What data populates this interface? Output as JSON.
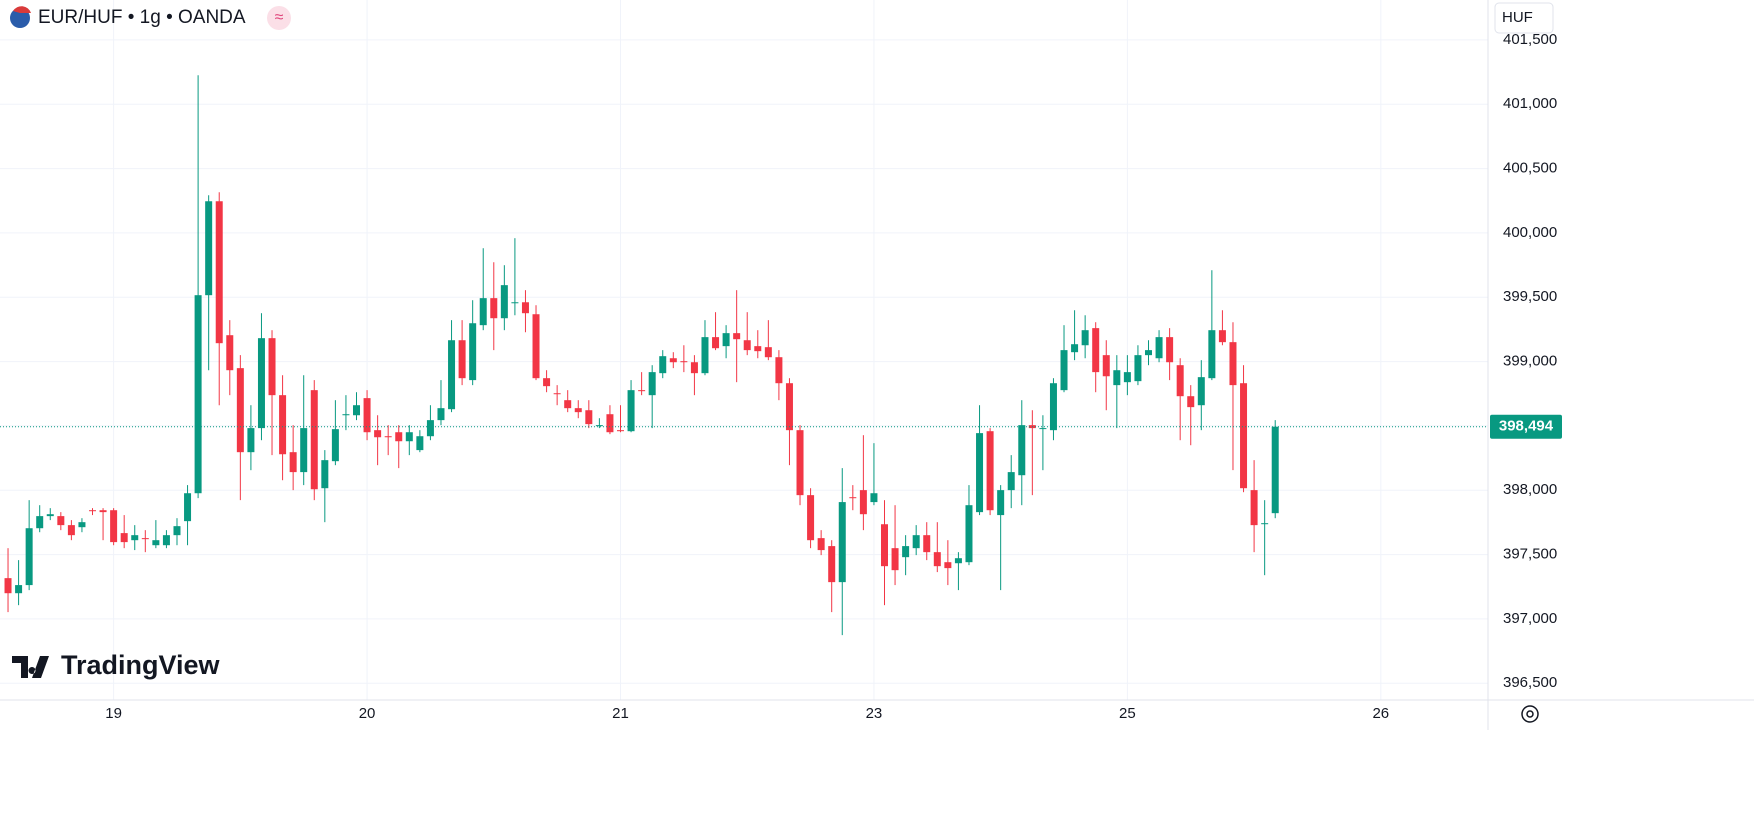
{
  "header": {
    "title": "EUR/HUF • 1g • OANDA",
    "badge": "≈",
    "currency_button": "HUF"
  },
  "logo": "TradingView",
  "chart_data": {
    "type": "candlestick",
    "up_color": "#089981",
    "down_color": "#f23645",
    "ylim": [
      396370,
      401810
    ],
    "yticks": [
      {
        "value": 396500,
        "label": "396,500"
      },
      {
        "value": 397000,
        "label": "397,000"
      },
      {
        "value": 397500,
        "label": "397,500"
      },
      {
        "value": 398000,
        "label": "398,000"
      },
      {
        "value": 398500,
        "label": "398,500"
      },
      {
        "value": 399000,
        "label": "399,000"
      },
      {
        "value": 399500,
        "label": "399,500"
      },
      {
        "value": 400000,
        "label": "400,000"
      },
      {
        "value": 400500,
        "label": "400,500"
      },
      {
        "value": 401000,
        "label": "401,000"
      },
      {
        "value": 401500,
        "label": "401,500"
      }
    ],
    "xlim": [
      -0.76,
      140.15
    ],
    "xticks": [
      {
        "value": 10,
        "label": "19"
      },
      {
        "value": 34,
        "label": "20"
      },
      {
        "value": 58,
        "label": "21"
      },
      {
        "value": 82,
        "label": "23"
      },
      {
        "value": 106,
        "label": "25"
      },
      {
        "value": 130,
        "label": "26"
      }
    ],
    "grid": true,
    "last_price": {
      "value": 398494,
      "label": "398,494"
    },
    "candles": [
      [
        397317,
        397550,
        397053,
        397200
      ],
      [
        397200,
        397457,
        397107,
        397263
      ],
      [
        397263,
        397923,
        397224,
        397705
      ],
      [
        397705,
        397884,
        397674,
        397799
      ],
      [
        397799,
        397861,
        397768,
        397814
      ],
      [
        397799,
        397830,
        397690,
        397729
      ],
      [
        397729,
        397768,
        397612,
        397651
      ],
      [
        397713,
        397783,
        397674,
        397752
      ],
      [
        397845,
        397861,
        397807,
        397838
      ],
      [
        397845,
        397861,
        397612,
        397830
      ],
      [
        397845,
        397861,
        397573,
        397597
      ],
      [
        397667,
        397807,
        397550,
        397597
      ],
      [
        397612,
        397729,
        397535,
        397651
      ],
      [
        397628,
        397690,
        397519,
        397620
      ],
      [
        397573,
        397768,
        397550,
        397612
      ],
      [
        397573,
        397690,
        397550,
        397651
      ],
      [
        397651,
        397783,
        397573,
        397721
      ],
      [
        397760,
        398040,
        397573,
        397977
      ],
      [
        397977,
        401225,
        397939,
        399516
      ],
      [
        399516,
        400293,
        398933,
        400246
      ],
      [
        400246,
        400316,
        398661,
        399143
      ],
      [
        399205,
        399322,
        398739,
        398933
      ],
      [
        398949,
        399050,
        397923,
        398296
      ],
      [
        398296,
        398661,
        398156,
        398483
      ],
      [
        398483,
        399376,
        398389,
        399182
      ],
      [
        399182,
        399244,
        398273,
        398739
      ],
      [
        398739,
        398894,
        398078,
        398280
      ],
      [
        398296,
        398506,
        398001,
        398141
      ],
      [
        398141,
        398894,
        398040,
        398483
      ],
      [
        398778,
        398856,
        397923,
        398008
      ],
      [
        398016,
        398312,
        397752,
        398234
      ],
      [
        398226,
        398700,
        398195,
        398475
      ],
      [
        398583,
        398739,
        398467,
        398591
      ],
      [
        398583,
        398762,
        398545,
        398661
      ],
      [
        398716,
        398778,
        398389,
        398451
      ],
      [
        398467,
        398583,
        398195,
        398412
      ],
      [
        398420,
        398506,
        398273,
        398412
      ],
      [
        398451,
        398506,
        398172,
        398381
      ],
      [
        398381,
        398506,
        398273,
        398451
      ],
      [
        398312,
        398467,
        398296,
        398420
      ],
      [
        398420,
        398661,
        398389,
        398545
      ],
      [
        398545,
        398856,
        398506,
        398638
      ],
      [
        398630,
        399322,
        398607,
        399166
      ],
      [
        399166,
        399322,
        398817,
        398871
      ],
      [
        398856,
        399477,
        398817,
        399298
      ],
      [
        399283,
        399881,
        399244,
        399493
      ],
      [
        399493,
        399772,
        399089,
        399337
      ],
      [
        399337,
        399749,
        399244,
        399594
      ],
      [
        399461,
        399959,
        399360,
        399461
      ],
      [
        399461,
        399555,
        399228,
        399376
      ],
      [
        399368,
        399438,
        398856,
        398871
      ],
      [
        398871,
        398933,
        398762,
        398809
      ],
      [
        398754,
        398817,
        398661,
        398747
      ],
      [
        398700,
        398778,
        398607,
        398638
      ],
      [
        398638,
        398700,
        398560,
        398607
      ],
      [
        398622,
        398700,
        398483,
        398514
      ],
      [
        398506,
        398560,
        398483,
        398506
      ],
      [
        398591,
        398661,
        398436,
        398451
      ],
      [
        398467,
        398661,
        398451,
        398459
      ],
      [
        398459,
        398856,
        398451,
        398778
      ],
      [
        398778,
        398918,
        398739,
        398770
      ],
      [
        398739,
        398972,
        398483,
        398918
      ],
      [
        398910,
        399089,
        398871,
        399042
      ],
      [
        399026,
        399073,
        398949,
        398995
      ],
      [
        399003,
        399127,
        398918,
        398995
      ],
      [
        398995,
        399050,
        398739,
        398910
      ],
      [
        398910,
        399322,
        398894,
        399190
      ],
      [
        399190,
        399384,
        399089,
        399104
      ],
      [
        399120,
        399283,
        399026,
        399221
      ],
      [
        399221,
        399555,
        398840,
        399174
      ],
      [
        399166,
        399384,
        399050,
        399089
      ],
      [
        399120,
        399244,
        399026,
        399081
      ],
      [
        399112,
        399322,
        399011,
        399034
      ],
      [
        399034,
        399089,
        398700,
        398832
      ],
      [
        398832,
        398871,
        398195,
        398467
      ],
      [
        398467,
        398506,
        397884,
        397962
      ],
      [
        397962,
        398016,
        397550,
        397612
      ],
      [
        397628,
        397690,
        397496,
        397535
      ],
      [
        397566,
        397612,
        397053,
        397286
      ],
      [
        397286,
        398172,
        396874,
        397908
      ],
      [
        397946,
        398040,
        397845,
        397939
      ],
      [
        398001,
        398428,
        397690,
        397814
      ],
      [
        397908,
        398366,
        397884,
        397977
      ],
      [
        397736,
        397923,
        397107,
        397410
      ],
      [
        397550,
        397884,
        397263,
        397379
      ],
      [
        397480,
        397651,
        397340,
        397566
      ],
      [
        397550,
        397729,
        397496,
        397651
      ],
      [
        397651,
        397752,
        397457,
        397519
      ],
      [
        397519,
        397752,
        397364,
        397410
      ],
      [
        397441,
        397612,
        397263,
        397395
      ],
      [
        397433,
        397519,
        397224,
        397472
      ],
      [
        397441,
        398040,
        397418,
        397884
      ],
      [
        397830,
        398661,
        397807,
        398444
      ],
      [
        398459,
        398483,
        397807,
        397845
      ],
      [
        397807,
        398040,
        397224,
        398001
      ],
      [
        398001,
        398273,
        397861,
        398141
      ],
      [
        398117,
        398700,
        397884,
        398506
      ],
      [
        398506,
        398622,
        397962,
        398483
      ],
      [
        398483,
        398583,
        398156,
        398483
      ],
      [
        398467,
        398871,
        398389,
        398832
      ],
      [
        398778,
        399283,
        398762,
        399089
      ],
      [
        399073,
        399399,
        399011,
        399135
      ],
      [
        399127,
        399360,
        399026,
        399244
      ],
      [
        399260,
        399306,
        398762,
        398918
      ],
      [
        399050,
        399166,
        398622,
        398886
      ],
      [
        398817,
        399050,
        398483,
        398933
      ],
      [
        398840,
        399050,
        398739,
        398918
      ],
      [
        398848,
        399127,
        398817,
        399050
      ],
      [
        399050,
        399166,
        398972,
        399089
      ],
      [
        399026,
        399244,
        398995,
        399190
      ],
      [
        399190,
        399260,
        398856,
        398995
      ],
      [
        398972,
        399026,
        398389,
        398731
      ],
      [
        398731,
        398817,
        398350,
        398646
      ],
      [
        398661,
        399011,
        398467,
        398879
      ],
      [
        398871,
        399710,
        398856,
        399244
      ],
      [
        399244,
        399399,
        399127,
        399151
      ],
      [
        399151,
        399306,
        398156,
        398817
      ],
      [
        398832,
        398972,
        397985,
        398016
      ],
      [
        398001,
        398234,
        397519,
        397729
      ],
      [
        397744,
        397923,
        397340,
        397744
      ],
      [
        397822,
        398545,
        397783,
        398494
      ]
    ]
  }
}
